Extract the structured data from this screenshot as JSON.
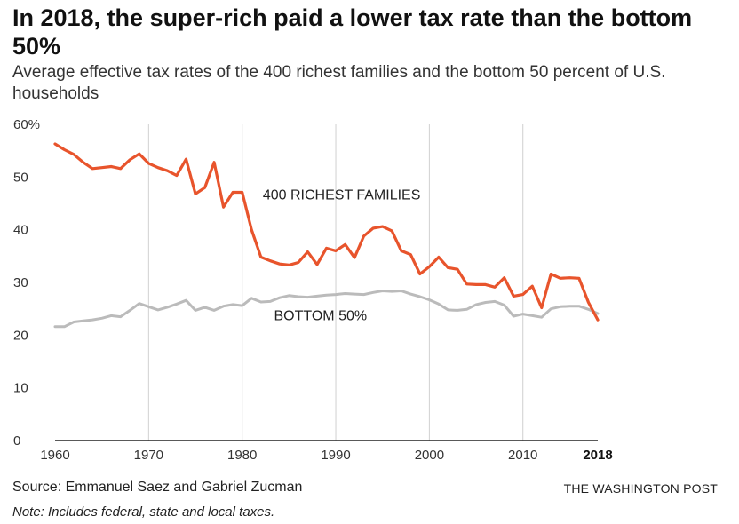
{
  "header": {
    "title": "In 2018, the super-rich paid a lower tax rate than the bottom 50%",
    "subtitle": "Average effective tax rates of the 400 richest families and the bottom 50 percent of U.S. households"
  },
  "footer": {
    "source": "Source: Emmanuel Saez and Gabriel Zucman",
    "credit": "THE WASHINGTON POST",
    "note": "Note: Includes federal, state and local taxes."
  },
  "chart_data": {
    "type": "line",
    "title": "In 2018, the super-rich paid a lower tax rate than the bottom 50%",
    "subtitle": "Average effective tax rates of the 400 richest families and the bottom 50 percent of U.S. households",
    "xlabel": "",
    "ylabel": "",
    "xlim": [
      1960,
      2018
    ],
    "ylim": [
      0,
      60
    ],
    "x_ticks": [
      1960,
      1970,
      1980,
      1990,
      2000,
      2010,
      2018
    ],
    "x_tick_labels": [
      "1960",
      "1970",
      "1980",
      "1990",
      "2000",
      "2010",
      "2018"
    ],
    "y_ticks": [
      0,
      10,
      20,
      30,
      40,
      50,
      60
    ],
    "y_tick_labels": [
      "0",
      "10",
      "20",
      "30",
      "40",
      "50",
      "60%"
    ],
    "grid": "vertical",
    "legend": "none",
    "x": [
      1960,
      1961,
      1962,
      1963,
      1964,
      1965,
      1966,
      1967,
      1968,
      1969,
      1970,
      1971,
      1972,
      1973,
      1974,
      1975,
      1976,
      1977,
      1978,
      1979,
      1980,
      1981,
      1982,
      1983,
      1984,
      1985,
      1986,
      1987,
      1988,
      1989,
      1990,
      1991,
      1992,
      1993,
      1994,
      1995,
      1996,
      1997,
      1998,
      1999,
      2000,
      2001,
      2002,
      2003,
      2004,
      2005,
      2006,
      2007,
      2008,
      2009,
      2010,
      2011,
      2012,
      2013,
      2014,
      2015,
      2016,
      2017,
      2018
    ],
    "series": [
      {
        "name": "400 RICHEST FAMILIES",
        "color": "#e8542c",
        "values": [
          56.3,
          55.2,
          54.3,
          52.8,
          51.6,
          51.8,
          52.0,
          51.6,
          53.3,
          54.4,
          52.6,
          51.8,
          51.2,
          50.3,
          53.4,
          46.8,
          48.0,
          52.8,
          44.3,
          47.1,
          47.1,
          40.0,
          34.8,
          34.1,
          33.5,
          33.3,
          33.8,
          35.8,
          33.4,
          36.5,
          36.0,
          37.2,
          34.7,
          38.8,
          40.3,
          40.6,
          39.8,
          36.0,
          35.3,
          31.6,
          33.0,
          34.8,
          32.8,
          32.5,
          29.7,
          29.6,
          29.6,
          29.1,
          30.9,
          27.4,
          27.7,
          29.3,
          25.2,
          31.6,
          30.8,
          30.9,
          30.8,
          26.2,
          22.9
        ]
      },
      {
        "name": "BOTTOM 50%",
        "color": "#bbbbbb",
        "values": [
          21.6,
          21.6,
          22.5,
          22.7,
          22.9,
          23.2,
          23.7,
          23.5,
          24.7,
          26.0,
          25.4,
          24.8,
          25.3,
          25.9,
          26.6,
          24.7,
          25.3,
          24.7,
          25.5,
          25.8,
          25.6,
          27.0,
          26.3,
          26.4,
          27.1,
          27.5,
          27.3,
          27.2,
          27.4,
          27.6,
          27.7,
          27.9,
          27.8,
          27.7,
          28.1,
          28.4,
          28.3,
          28.4,
          27.8,
          27.3,
          26.7,
          25.9,
          24.8,
          24.7,
          24.9,
          25.8,
          26.2,
          26.4,
          25.7,
          23.6,
          24.0,
          23.7,
          23.4,
          25.0,
          25.4,
          25.5,
          25.5,
          24.9,
          24.1
        ]
      }
    ]
  }
}
